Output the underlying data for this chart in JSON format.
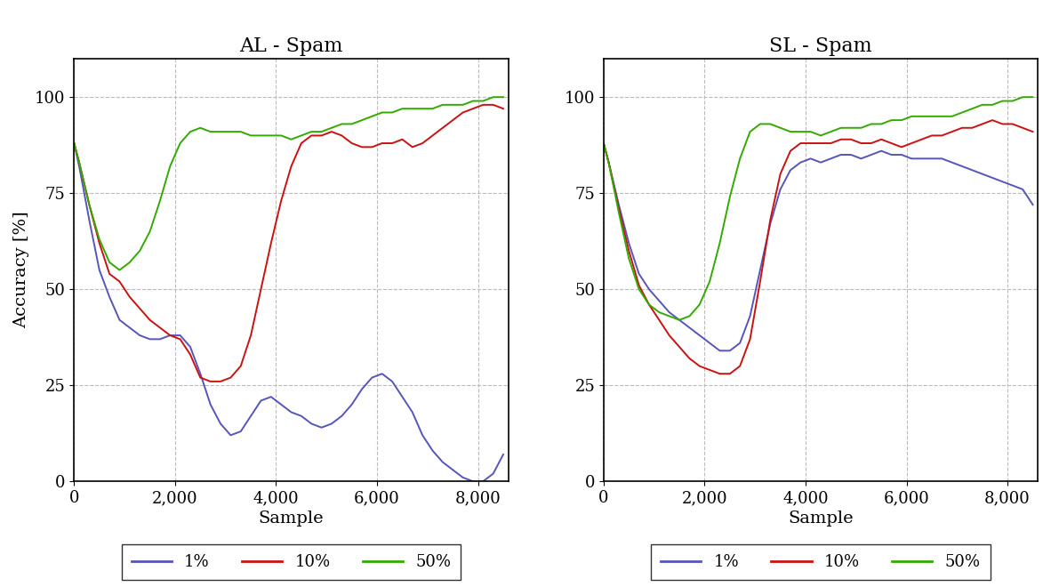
{
  "title_left": "AL - Spam",
  "title_right": "SL - Spam",
  "xlabel": "Sample",
  "ylabel": "Accuracy [%]",
  "ylim": [
    0,
    110
  ],
  "xlim": [
    0,
    8600
  ],
  "yticks": [
    0,
    25,
    50,
    75,
    100
  ],
  "xticks": [
    0,
    2000,
    4000,
    6000,
    8000
  ],
  "colors": {
    "1%": "#5555bb",
    "10%": "#cc1111",
    "50%": "#33aa00"
  },
  "line_width": 1.4,
  "font_family": "serif",
  "title_fontsize": 16,
  "label_fontsize": 14,
  "tick_fontsize": 13,
  "legend_fontsize": 13,
  "background_color": "#ffffff",
  "grid_color": "#bbbbbb",
  "grid_style": "--",
  "al_1pct_x": [
    0,
    100,
    300,
    500,
    700,
    900,
    1100,
    1300,
    1500,
    1700,
    1900,
    2100,
    2300,
    2500,
    2700,
    2900,
    3100,
    3300,
    3500,
    3700,
    3900,
    4100,
    4300,
    4500,
    4700,
    4900,
    5100,
    5300,
    5500,
    5700,
    5900,
    6100,
    6300,
    6500,
    6700,
    6900,
    7100,
    7300,
    7500,
    7700,
    7900,
    8100,
    8300,
    8500
  ],
  "al_1pct_y": [
    88,
    82,
    68,
    55,
    48,
    42,
    40,
    38,
    37,
    37,
    38,
    38,
    35,
    28,
    20,
    15,
    12,
    13,
    17,
    21,
    22,
    20,
    18,
    17,
    15,
    14,
    15,
    17,
    20,
    24,
    27,
    28,
    26,
    22,
    18,
    12,
    8,
    5,
    3,
    1,
    0,
    0,
    2,
    7
  ],
  "al_10pct_x": [
    0,
    100,
    300,
    500,
    700,
    900,
    1100,
    1300,
    1500,
    1700,
    1900,
    2100,
    2300,
    2500,
    2700,
    2900,
    3100,
    3300,
    3500,
    3700,
    3900,
    4100,
    4300,
    4500,
    4700,
    4900,
    5100,
    5300,
    5500,
    5700,
    5900,
    6100,
    6300,
    6500,
    6700,
    6900,
    7100,
    7300,
    7500,
    7700,
    7900,
    8100,
    8300,
    8500
  ],
  "al_10pct_y": [
    88,
    83,
    72,
    62,
    54,
    52,
    48,
    45,
    42,
    40,
    38,
    37,
    33,
    27,
    26,
    26,
    27,
    30,
    38,
    50,
    62,
    73,
    82,
    88,
    90,
    90,
    91,
    90,
    88,
    87,
    87,
    88,
    88,
    89,
    87,
    88,
    90,
    92,
    94,
    96,
    97,
    98,
    98,
    97
  ],
  "al_50pct_x": [
    0,
    100,
    300,
    500,
    700,
    900,
    1100,
    1300,
    1500,
    1700,
    1900,
    2100,
    2300,
    2500,
    2700,
    2900,
    3100,
    3300,
    3500,
    3700,
    3900,
    4100,
    4300,
    4500,
    4700,
    4900,
    5100,
    5300,
    5500,
    5700,
    5900,
    6100,
    6300,
    6500,
    6700,
    6900,
    7100,
    7300,
    7500,
    7700,
    7900,
    8100,
    8300,
    8500
  ],
  "al_50pct_y": [
    88,
    83,
    72,
    63,
    57,
    55,
    57,
    60,
    65,
    73,
    82,
    88,
    91,
    92,
    91,
    91,
    91,
    91,
    90,
    90,
    90,
    90,
    89,
    90,
    91,
    91,
    92,
    93,
    93,
    94,
    95,
    96,
    96,
    97,
    97,
    97,
    97,
    98,
    98,
    98,
    99,
    99,
    100,
    100
  ],
  "sl_1pct_x": [
    0,
    100,
    300,
    500,
    700,
    900,
    1100,
    1300,
    1500,
    1700,
    1900,
    2100,
    2300,
    2500,
    2700,
    2900,
    3100,
    3300,
    3500,
    3700,
    3900,
    4100,
    4300,
    4500,
    4700,
    4900,
    5100,
    5300,
    5500,
    5700,
    5900,
    6100,
    6300,
    6500,
    6700,
    6900,
    7100,
    7300,
    7500,
    7700,
    7900,
    8100,
    8300,
    8500
  ],
  "sl_1pct_y": [
    88,
    83,
    72,
    62,
    54,
    50,
    47,
    44,
    42,
    40,
    38,
    36,
    34,
    34,
    36,
    43,
    55,
    67,
    76,
    81,
    83,
    84,
    83,
    84,
    85,
    85,
    84,
    85,
    86,
    85,
    85,
    84,
    84,
    84,
    84,
    83,
    82,
    81,
    80,
    79,
    78,
    77,
    76,
    72
  ],
  "sl_10pct_x": [
    0,
    100,
    300,
    500,
    700,
    900,
    1100,
    1300,
    1500,
    1700,
    1900,
    2100,
    2300,
    2500,
    2700,
    2900,
    3100,
    3300,
    3500,
    3700,
    3900,
    4100,
    4300,
    4500,
    4700,
    4900,
    5100,
    5300,
    5500,
    5700,
    5900,
    6100,
    6300,
    6500,
    6700,
    6900,
    7100,
    7300,
    7500,
    7700,
    7900,
    8100,
    8300,
    8500
  ],
  "sl_10pct_y": [
    88,
    83,
    71,
    60,
    51,
    46,
    42,
    38,
    35,
    32,
    30,
    29,
    28,
    28,
    30,
    37,
    52,
    68,
    80,
    86,
    88,
    88,
    88,
    88,
    89,
    89,
    88,
    88,
    89,
    88,
    87,
    88,
    89,
    90,
    90,
    91,
    92,
    92,
    93,
    94,
    93,
    93,
    92,
    91
  ],
  "sl_50pct_x": [
    0,
    100,
    300,
    500,
    700,
    900,
    1100,
    1300,
    1500,
    1700,
    1900,
    2100,
    2300,
    2500,
    2700,
    2900,
    3100,
    3300,
    3500,
    3700,
    3900,
    4100,
    4300,
    4500,
    4700,
    4900,
    5100,
    5300,
    5500,
    5700,
    5900,
    6100,
    6300,
    6500,
    6700,
    6900,
    7100,
    7300,
    7500,
    7700,
    7900,
    8100,
    8300,
    8500
  ],
  "sl_50pct_y": [
    88,
    83,
    70,
    58,
    50,
    46,
    44,
    43,
    42,
    43,
    46,
    52,
    62,
    74,
    84,
    91,
    93,
    93,
    92,
    91,
    91,
    91,
    90,
    91,
    92,
    92,
    92,
    93,
    93,
    94,
    94,
    95,
    95,
    95,
    95,
    95,
    96,
    97,
    98,
    98,
    99,
    99,
    100,
    100
  ]
}
